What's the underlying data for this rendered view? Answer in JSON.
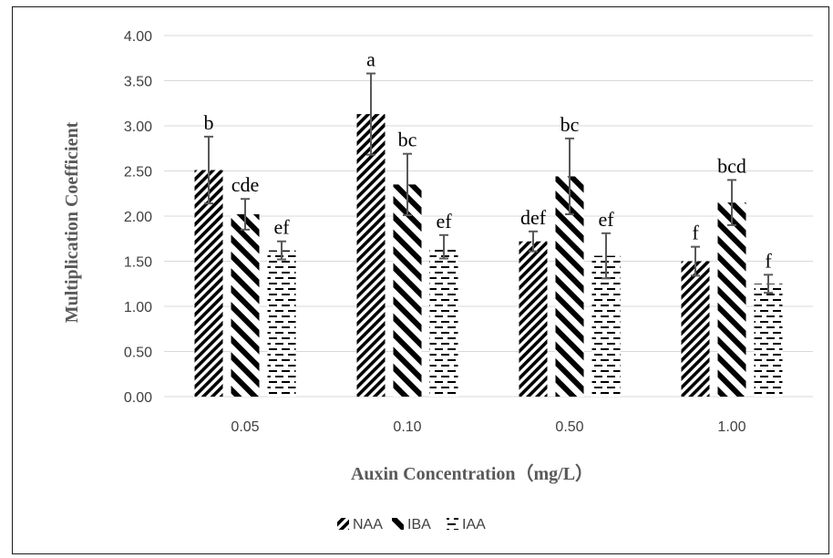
{
  "chart_data": {
    "type": "bar",
    "categories": [
      "0.05",
      "0.10",
      "0.50",
      "1.00"
    ],
    "series": [
      {
        "name": "NAA",
        "values": [
          2.51,
          3.13,
          1.72,
          1.5
        ],
        "errors": [
          0.37,
          0.45,
          0.11,
          0.16
        ],
        "letters": [
          "b",
          "a",
          "def",
          "f"
        ],
        "pattern": "dense-diagonal"
      },
      {
        "name": "IBA",
        "values": [
          2.02,
          2.35,
          2.44,
          2.15
        ],
        "errors": [
          0.17,
          0.34,
          0.42,
          0.25
        ],
        "letters": [
          "cde",
          "bc",
          "bc",
          "bcd"
        ],
        "pattern": "wide-diagonal"
      },
      {
        "name": "IAA",
        "values": [
          1.62,
          1.66,
          1.56,
          1.25
        ],
        "errors": [
          0.1,
          0.13,
          0.25,
          0.1
        ],
        "letters": [
          "ef",
          "ef",
          "ef",
          "f"
        ],
        "pattern": "dashed-horizontal"
      }
    ],
    "xlabel": "Auxin Concentration（mg/L）",
    "ylabel": "Multiplication Coefficient",
    "ylim": [
      0,
      4
    ],
    "yticks": [
      "0.00",
      "0.50",
      "1.00",
      "1.50",
      "2.00",
      "2.50",
      "3.00",
      "3.50",
      "4.00"
    ],
    "grid": true,
    "legend_position": "bottom"
  },
  "colors": {
    "bar_pattern": "#000000",
    "gridline": "#d9d9d9",
    "error_bar": "#595959",
    "frame": "#1a1a1a"
  }
}
